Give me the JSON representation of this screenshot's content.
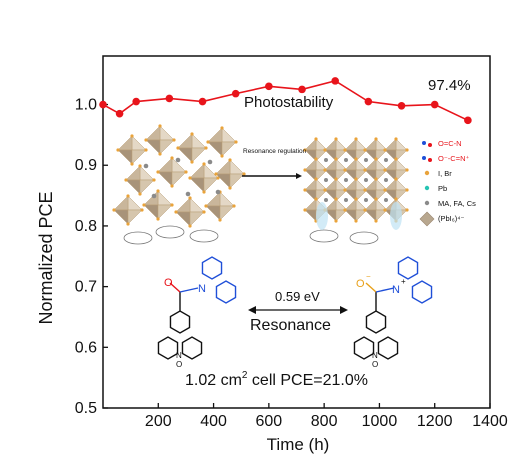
{
  "chart_data": {
    "type": "line",
    "title": "",
    "xlabel": "Time (h)",
    "ylabel": "Normalized PCE",
    "xlim": [
      0,
      1400
    ],
    "ylim": [
      0.5,
      1.08
    ],
    "xticks": [
      200,
      400,
      600,
      800,
      1000,
      1200,
      1400
    ],
    "yticks": [
      0.5,
      0.6,
      0.7,
      0.8,
      0.9,
      1.0
    ],
    "xtick_labels": [
      "200",
      "400",
      "600",
      "800",
      "1000",
      "1200",
      "1400"
    ],
    "ytick_labels": [
      "0.5",
      "0.6",
      "0.7",
      "0.8",
      "0.9",
      "1.0"
    ],
    "grid": false,
    "series": [
      {
        "name": "Photostability",
        "color": "#e8141b",
        "x": [
          0,
          60,
          120,
          240,
          360,
          480,
          600,
          720,
          840,
          960,
          1080,
          1200,
          1320
        ],
        "y": [
          1.0,
          0.985,
          1.005,
          1.01,
          1.005,
          1.018,
          1.03,
          1.025,
          1.039,
          1.005,
          0.998,
          1.0,
          0.974
        ]
      }
    ],
    "annotations": {
      "series_label": "Photostability",
      "final_value": "97.4%",
      "energy": "0.59 eV",
      "resonance": "Resonance",
      "regulation": "Resonance regulation",
      "cell_prefix": "1.02 cm",
      "cell_sup": "2",
      "cell_suffix": " cell PCE=21.0%"
    },
    "legend": {
      "placement": "right",
      "items": [
        {
          "label": "O=C-N",
          "color": "#e8141b"
        },
        {
          "label": "O⁻-C=N⁺",
          "color": "#e8141b"
        },
        {
          "label": "I, Br",
          "color": "#e9a33b"
        },
        {
          "label": "Pb",
          "color": "#27c4b3"
        },
        {
          "label": "MA, FA, Cs",
          "color": "#8a8a8a"
        },
        {
          "label": "(PbI₆)⁴⁻",
          "color": "#b8a78f"
        }
      ]
    }
  }
}
